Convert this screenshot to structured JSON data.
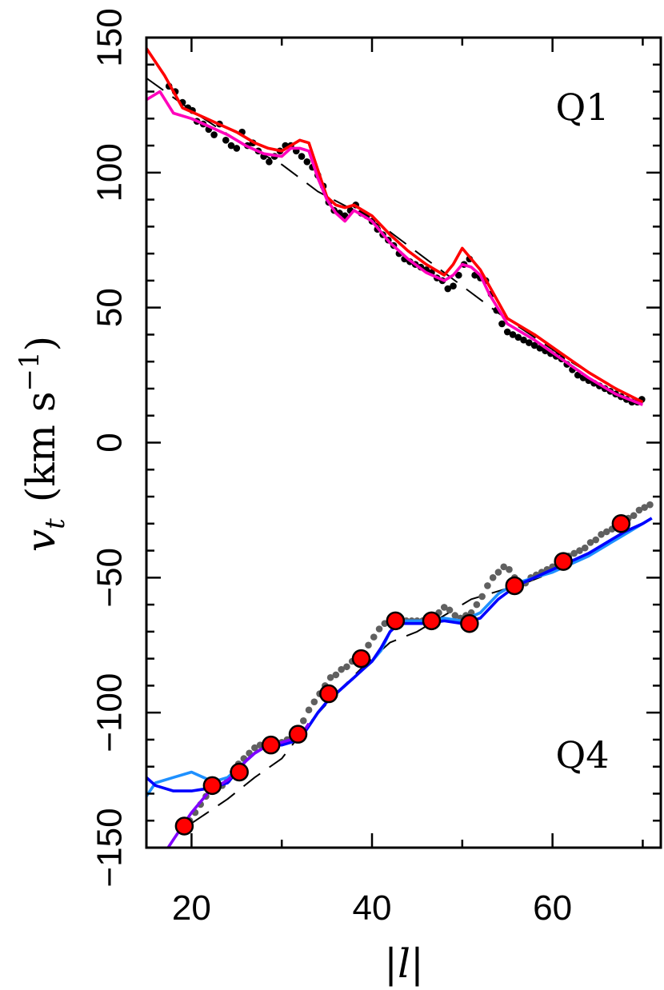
{
  "chart_data": {
    "type": "scatter",
    "xlabel": "|l|",
    "ylabel_parts": {
      "main": "v",
      "sub": "t",
      "unit": "(km s",
      "exp": "−1",
      "close": ")"
    },
    "xlim": [
      15,
      72
    ],
    "ylim": [
      -150,
      150
    ],
    "x_ticks": [
      20,
      40,
      60
    ],
    "y_ticks": [
      150,
      100,
      50,
      0,
      -50,
      -100,
      -150
    ],
    "x_tick_labels": [
      "20",
      "40",
      "60"
    ],
    "y_tick_labels": [
      "150",
      "100",
      "50",
      "0",
      "−50",
      "−100",
      "−150"
    ],
    "panel_labels": [
      "Q1",
      "Q4"
    ],
    "colors": {
      "q1_red": "#ff0000",
      "q1_magenta": "#ff00bb",
      "q4_blue": "#0000ff",
      "q4_lightblue": "#1e90ff",
      "q4_purple": "#8000ff",
      "q4_points": "#606060",
      "q1_points": "#000000",
      "markers_fill": "#ff0000"
    },
    "series": [
      {
        "kind": "points",
        "color": "#000000",
        "x": [
          17.5,
          18.2,
          19.0,
          19.6,
          20.1,
          20.6,
          21.3,
          21.9,
          22.5,
          23.1,
          23.8,
          24.4,
          25.0,
          25.6,
          26.2,
          26.8,
          27.4,
          28.0,
          28.6,
          29.2,
          29.8,
          30.4,
          31.0,
          31.6,
          32.2,
          32.8,
          33.4,
          34.0,
          34.6,
          35.2,
          35.8,
          36.4,
          37.0,
          37.6,
          38.2,
          38.8,
          39.4,
          40.0,
          40.6,
          41.2,
          41.8,
          42.4,
          43.0,
          43.6,
          44.2,
          44.8,
          45.4,
          46.0,
          46.6,
          47.2,
          47.8,
          48.4,
          49.0,
          49.6,
          50.2,
          50.8,
          51.4,
          52.0,
          52.6,
          53.2,
          53.8,
          54.4,
          55.0,
          55.6,
          56.2,
          56.8,
          57.4,
          58.0,
          58.6,
          59.2,
          59.8,
          60.4,
          61.0,
          61.6,
          62.2,
          62.8,
          63.4,
          64.0,
          64.6,
          65.2,
          65.8,
          66.4,
          67.0,
          67.6,
          68.2,
          68.8,
          69.4,
          69.9
        ],
        "y": [
          132,
          130,
          126,
          124,
          123,
          119,
          118,
          116,
          114,
          118,
          112,
          110,
          109,
          115,
          110,
          111,
          108,
          106,
          104,
          106,
          108,
          110,
          110,
          108,
          106,
          104,
          102,
          99,
          95,
          89,
          86,
          85,
          84,
          86,
          88,
          85,
          84,
          82,
          79,
          77,
          75,
          73,
          70,
          68,
          67,
          66,
          65,
          64,
          63,
          61,
          60,
          57,
          58,
          62,
          66,
          68,
          62,
          61,
          60,
          55,
          49,
          44,
          41,
          40,
          39,
          38,
          37,
          36,
          35,
          34,
          33,
          32,
          31,
          29,
          27,
          25,
          24,
          23,
          22,
          21,
          20,
          19,
          18,
          17,
          16,
          15,
          15,
          16
        ]
      },
      {
        "kind": "line",
        "color": "#ff0000",
        "x": [
          15,
          17,
          19,
          21,
          23,
          25,
          27,
          28.5,
          30,
          31,
          32,
          33,
          34,
          35,
          36,
          37,
          38,
          40,
          42,
          44,
          46,
          48,
          49,
          50,
          51,
          52,
          53,
          55,
          58,
          61,
          64,
          67,
          70
        ],
        "y": [
          146,
          136,
          124,
          121,
          118,
          115,
          111,
          109,
          108,
          110,
          112,
          111,
          101,
          91,
          88,
          87,
          88,
          84,
          77,
          71,
          66,
          62,
          66,
          72,
          68,
          64,
          58,
          46,
          40,
          33,
          26,
          20,
          15
        ]
      },
      {
        "kind": "line",
        "color": "#ff00bb",
        "x": [
          15,
          16.5,
          18,
          20,
          22,
          24,
          26,
          28,
          30,
          31,
          32,
          33,
          34,
          35,
          36,
          37,
          38,
          40,
          42,
          44,
          46,
          48,
          49,
          50,
          51,
          52,
          53,
          55,
          58,
          61,
          64,
          67,
          70
        ],
        "y": [
          127,
          130,
          122,
          120,
          117,
          114,
          110,
          107,
          106,
          109,
          109,
          108,
          98,
          90,
          85,
          82,
          86,
          82,
          74,
          68,
          63,
          60,
          62,
          66,
          65,
          62,
          55,
          44,
          38,
          31,
          24,
          18,
          14
        ]
      },
      {
        "kind": "dashed",
        "color": "#000000",
        "x": [
          15,
          20,
          25,
          30,
          34,
          38,
          42,
          46,
          50,
          54,
          58,
          62,
          66,
          70
        ],
        "y": [
          135,
          123,
          112,
          103,
          93,
          86,
          78,
          68,
          58,
          48,
          39,
          30,
          22,
          15
        ]
      },
      {
        "kind": "points",
        "color": "#606060",
        "x": [
          19.2,
          19.8,
          20.4,
          21.0,
          21.6,
          22.2,
          22.8,
          23.4,
          24.0,
          24.6,
          25.2,
          25.8,
          26.4,
          27.0,
          27.6,
          28.2,
          28.8,
          29.4,
          30.0,
          30.6,
          31.2,
          31.8,
          32.4,
          33.0,
          33.6,
          34.2,
          34.8,
          35.4,
          36.0,
          36.6,
          37.2,
          37.8,
          38.4,
          39.0,
          39.6,
          40.2,
          40.8,
          41.4,
          42.0,
          42.6,
          43.2,
          43.8,
          44.4,
          45.0,
          45.6,
          46.2,
          46.8,
          47.4,
          48.0,
          48.6,
          49.2,
          49.8,
          50.4,
          51.0,
          51.6,
          52.2,
          52.8,
          53.4,
          54.0,
          54.6,
          55.2,
          55.8,
          56.4,
          57.0,
          57.6,
          58.2,
          58.8,
          59.4,
          60.0,
          60.6,
          61.2,
          61.8,
          62.4,
          63.0,
          63.6,
          64.2,
          64.8,
          65.4,
          66.0,
          66.6,
          67.2,
          67.8,
          68.4,
          69.0,
          69.6,
          70.2,
          70.8
        ],
        "y": [
          -143,
          -140,
          -137,
          -134,
          -131,
          -128,
          -128,
          -127,
          -125,
          -122,
          -119,
          -117,
          -115,
          -113,
          -112,
          -112,
          -111,
          -111,
          -111,
          -110,
          -110,
          -107,
          -103,
          -99,
          -96,
          -93,
          -90,
          -87,
          -86,
          -84,
          -83,
          -81,
          -80,
          -78,
          -75,
          -72,
          -69,
          -67,
          -66,
          -65,
          -65,
          -66,
          -66,
          -66,
          -66,
          -65,
          -64,
          -63,
          -61,
          -62,
          -64,
          -65,
          -64,
          -63,
          -60,
          -57,
          -53,
          -50,
          -48,
          -46,
          -47,
          -50,
          -52,
          -52,
          -50,
          -49,
          -48,
          -47,
          -46,
          -44,
          -43,
          -42,
          -41,
          -40,
          -39,
          -37,
          -36,
          -34,
          -33,
          -32,
          -30,
          -29,
          -28,
          -27,
          -25,
          -24,
          -23
        ]
      },
      {
        "kind": "line",
        "color": "#1e90ff",
        "x": [
          15,
          16,
          18,
          20,
          22,
          23,
          24,
          25,
          26,
          27,
          28,
          29,
          30,
          31,
          32,
          33,
          34,
          35,
          36,
          37,
          38,
          39,
          40,
          41,
          42,
          43,
          44,
          46,
          48,
          50,
          52,
          54,
          56,
          58,
          60,
          62,
          64,
          66,
          68,
          70,
          71
        ],
        "y": [
          -131,
          -126,
          -124,
          -122,
          -125,
          -125,
          -124,
          -121,
          -118,
          -115,
          -113,
          -112,
          -112,
          -111,
          -109,
          -105,
          -100,
          -96,
          -93,
          -90,
          -87,
          -84,
          -81,
          -77,
          -70,
          -66,
          -66,
          -66,
          -65,
          -66,
          -63,
          -56,
          -52,
          -50,
          -48,
          -45,
          -42,
          -38,
          -34,
          -30,
          -28
        ]
      },
      {
        "kind": "line",
        "color": "#0000ff",
        "x": [
          15,
          16,
          18,
          20,
          22,
          23,
          24,
          25,
          26,
          27,
          28,
          29,
          30,
          31,
          32,
          33,
          34,
          35,
          36,
          37,
          38,
          39,
          40,
          41,
          42,
          43,
          44,
          46,
          48,
          50,
          52,
          54,
          56,
          58,
          60,
          62,
          64,
          66,
          68,
          70,
          71
        ],
        "y": [
          -124,
          -127,
          -129,
          -129,
          -128,
          -127,
          -126,
          -122,
          -118,
          -115,
          -113,
          -112,
          -112,
          -111,
          -110,
          -105,
          -100,
          -96,
          -93,
          -90,
          -87,
          -84,
          -81,
          -76,
          -70,
          -67,
          -67,
          -67,
          -66,
          -67,
          -65,
          -58,
          -53,
          -50,
          -47,
          -44,
          -41,
          -37,
          -33,
          -30,
          -28
        ]
      },
      {
        "kind": "line",
        "color": "#8000ff",
        "x": [
          17,
          18,
          19,
          20,
          21,
          22,
          23,
          24,
          25,
          26,
          27,
          28,
          29,
          30,
          31,
          32,
          33
        ],
        "y": [
          -152,
          -147,
          -142,
          -137,
          -133,
          -129,
          -127,
          -125,
          -122,
          -118,
          -115,
          -113,
          -112,
          -111,
          -110,
          -109,
          -104
        ]
      },
      {
        "kind": "dashed",
        "color": "#000000",
        "x": [
          20,
          24,
          27,
          30,
          33,
          36,
          39,
          42,
          45,
          48,
          51,
          54,
          57,
          60,
          63,
          66,
          69
        ],
        "y": [
          -141,
          -132,
          -124,
          -117,
          -104,
          -93,
          -83,
          -74,
          -70,
          -64,
          -58,
          -55,
          -52,
          -48,
          -43,
          -37,
          -31
        ]
      },
      {
        "kind": "markers",
        "color": "#ff0000",
        "x": [
          19.2,
          22.3,
          25.3,
          28.8,
          31.8,
          35.2,
          38.8,
          42.6,
          46.6,
          50.8,
          55.8,
          61.2,
          67.6
        ],
        "y": [
          -142,
          -127,
          -122,
          -112,
          -108,
          -93,
          -80,
          -66,
          -66,
          -67,
          -53,
          -44,
          -30
        ]
      }
    ]
  }
}
